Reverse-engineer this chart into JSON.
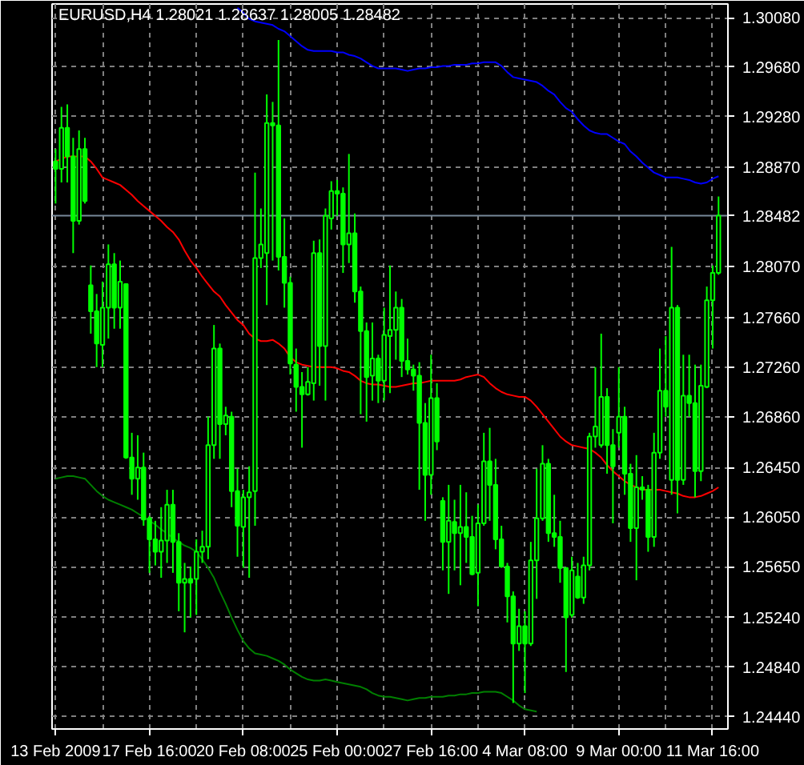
{
  "chart_data": {
    "type": "candlestick",
    "title": "EURUSD,H4  1.28021 1.28637 1.28005 1.28482",
    "color": "#00ff00",
    "grid": true,
    "categories": [
      "13 Feb 2009",
      null,
      null,
      null,
      null,
      null,
      null,
      null,
      null,
      null,
      null,
      null,
      null,
      null,
      null,
      null,
      "17 Feb 16:00",
      null,
      null,
      null,
      null,
      null,
      null,
      null,
      null,
      null,
      null,
      null,
      null,
      null,
      null,
      null,
      "20 Feb 08:00",
      null,
      null,
      null,
      null,
      null,
      null,
      null,
      null,
      null,
      null,
      null,
      null,
      null,
      null,
      null,
      "25 Feb 00:00",
      null,
      null,
      null,
      null,
      null,
      null,
      null,
      null,
      null,
      null,
      null,
      null,
      null,
      null,
      null,
      "27 Feb 16:00",
      null,
      null,
      null,
      null,
      null,
      null,
      null,
      null,
      null,
      null,
      null,
      null,
      null,
      null,
      null,
      "4 Mar 08:00",
      null,
      null,
      null,
      null,
      null,
      null,
      null,
      null,
      null,
      null,
      null,
      null,
      null,
      null,
      null,
      "9 Mar 00:00",
      null,
      null,
      null,
      null,
      null,
      null,
      null,
      null,
      null,
      null,
      null,
      null,
      null,
      null,
      null,
      "11 Mar 16:00",
      null
    ],
    "ohlc": [
      [
        1.2892,
        1.2902,
        1.2858,
        1.2886
      ],
      [
        1.2886,
        1.2936,
        1.2875,
        1.2919
      ],
      [
        1.2919,
        1.2938,
        1.2875,
        1.2896
      ],
      [
        1.2896,
        1.2911,
        1.2818,
        1.2844
      ],
      [
        1.2844,
        1.2917,
        1.2841,
        1.2902
      ],
      [
        1.2902,
        1.2911,
        1.2858,
        1.286
      ],
      [
        1.2792,
        1.2808,
        1.2753,
        1.2771
      ],
      [
        1.2771,
        1.2785,
        1.2726,
        1.2745
      ],
      [
        1.2744,
        1.2795,
        1.2726,
        1.2774
      ],
      [
        1.2774,
        1.2825,
        1.2749,
        1.2809
      ],
      [
        1.2809,
        1.2818,
        1.2757,
        1.2774
      ],
      [
        1.2774,
        1.2812,
        1.2757,
        1.2795
      ],
      [
        1.2793,
        1.2793,
        1.2652,
        1.2653
      ],
      [
        1.2653,
        1.2673,
        1.2623,
        1.2636
      ],
      [
        1.2636,
        1.2671,
        1.2619,
        1.2645
      ],
      [
        1.2645,
        1.2657,
        1.2598,
        1.2603
      ],
      [
        1.2604,
        1.2606,
        1.256,
        1.2587
      ],
      [
        1.2587,
        1.2602,
        1.2566,
        1.2577
      ],
      [
        1.2577,
        1.2613,
        1.2556,
        1.2586
      ],
      [
        1.2586,
        1.2627,
        1.2568,
        1.2615
      ],
      [
        1.2615,
        1.2627,
        1.256,
        1.2585
      ],
      [
        1.2585,
        1.2592,
        1.2529,
        1.2552
      ],
      [
        1.2552,
        1.2568,
        1.2512,
        1.2555
      ],
      [
        1.2555,
        1.2565,
        1.2524,
        1.2552
      ],
      [
        1.2555,
        1.2587,
        1.2526,
        1.2577
      ],
      [
        1.2577,
        1.2594,
        1.2568,
        1.2581
      ],
      [
        1.2581,
        1.2686,
        1.2571,
        1.2663
      ],
      [
        1.2663,
        1.276,
        1.2652,
        1.2741
      ],
      [
        1.2741,
        1.2745,
        1.2652,
        1.268
      ],
      [
        1.268,
        1.2694,
        1.2671,
        1.2687
      ],
      [
        1.2686,
        1.269,
        1.2613,
        1.2626
      ],
      [
        1.2626,
        1.2644,
        1.2573,
        1.2598
      ],
      [
        1.2597,
        1.2627,
        1.2564,
        1.2621
      ],
      [
        1.2621,
        1.2646,
        1.2556,
        1.2625
      ],
      [
        1.2626,
        1.2883,
        1.2598,
        1.2814
      ],
      [
        1.2814,
        1.2854,
        1.2806,
        1.2825
      ],
      [
        1.2818,
        1.2946,
        1.2776,
        1.2923
      ],
      [
        1.2923,
        1.294,
        1.2812,
        1.2921
      ],
      [
        1.2921,
        1.299,
        1.2804,
        1.2815
      ],
      [
        1.2815,
        1.2846,
        1.2774,
        1.2794
      ],
      [
        1.2794,
        1.2799,
        1.272,
        1.2729
      ],
      [
        1.2728,
        1.2741,
        1.269,
        1.271
      ],
      [
        1.271,
        1.2722,
        1.2661,
        1.2704
      ],
      [
        1.2704,
        1.2726,
        1.2703,
        1.2714
      ],
      [
        1.2713,
        1.2828,
        1.2699,
        1.2818
      ],
      [
        1.2818,
        1.2829,
        1.2711,
        1.2743
      ],
      [
        1.2743,
        1.2854,
        1.2699,
        1.2848
      ],
      [
        1.2846,
        1.2876,
        1.2837,
        1.2868
      ],
      [
        1.2868,
        1.2877,
        1.2848,
        1.2866
      ],
      [
        1.2866,
        1.2871,
        1.2802,
        1.2825
      ],
      [
        1.2825,
        1.2898,
        1.281,
        1.2834
      ],
      [
        1.2834,
        1.285,
        1.2778,
        1.2787
      ],
      [
        1.2787,
        1.2791,
        1.2688,
        1.2755
      ],
      [
        1.2755,
        1.2762,
        1.2682,
        1.2718
      ],
      [
        1.2719,
        1.2762,
        1.2699,
        1.2733
      ],
      [
        1.2733,
        1.2736,
        1.2697,
        1.2715
      ],
      [
        1.2715,
        1.2774,
        1.2699,
        1.2752
      ],
      [
        1.2751,
        1.2808,
        1.2705,
        1.2756
      ],
      [
        1.2756,
        1.2787,
        1.2732,
        1.2774
      ],
      [
        1.2774,
        1.2781,
        1.2718,
        1.2731
      ],
      [
        1.2731,
        1.2749,
        1.272,
        1.2724
      ],
      [
        1.2724,
        1.2728,
        1.2707,
        1.2719
      ],
      [
        1.2719,
        1.273,
        1.2627,
        1.2681
      ],
      [
        1.2681,
        1.2697,
        1.2602,
        1.2639
      ],
      [
        1.2639,
        1.2736,
        1.2623,
        1.2701
      ],
      [
        1.2701,
        1.2713,
        1.2659,
        1.2666
      ],
      [
        1.2618,
        1.2621,
        1.2562,
        1.2585
      ],
      [
        1.2585,
        1.2631,
        1.2543,
        1.2602
      ],
      [
        1.2601,
        1.2619,
        1.2562,
        1.2592
      ],
      [
        1.2592,
        1.2631,
        1.255,
        1.2597
      ],
      [
        1.2597,
        1.2625,
        1.2568,
        1.2589
      ],
      [
        1.2589,
        1.2606,
        1.2558,
        1.2559
      ],
      [
        1.256,
        1.2615,
        1.2533,
        1.26
      ],
      [
        1.26,
        1.2673,
        1.2598,
        1.265
      ],
      [
        1.265,
        1.2677,
        1.2602,
        1.2631
      ],
      [
        1.2631,
        1.2652,
        1.2579,
        1.2587
      ],
      [
        1.2587,
        1.2598,
        1.2564,
        1.2565
      ],
      [
        1.2565,
        1.2568,
        1.252,
        1.2541
      ],
      [
        1.2541,
        1.2545,
        1.2455,
        1.2503
      ],
      [
        1.2503,
        1.2531,
        1.2497,
        1.2517
      ],
      [
        1.2517,
        1.2529,
        1.2463,
        1.2503
      ],
      [
        1.2503,
        1.2585,
        1.2501,
        1.257
      ],
      [
        1.257,
        1.2644,
        1.2539,
        1.2604
      ],
      [
        1.2604,
        1.2663,
        1.2602,
        1.2648
      ],
      [
        1.2648,
        1.2652,
        1.2585,
        1.2592
      ],
      [
        1.2592,
        1.2623,
        1.2581,
        1.2589
      ],
      [
        1.2589,
        1.2602,
        1.2552,
        1.2564
      ],
      [
        1.2564,
        1.2564,
        1.248,
        1.2524
      ],
      [
        1.2526,
        1.2573,
        1.2524,
        1.2562
      ],
      [
        1.2557,
        1.2568,
        1.2539,
        1.254
      ],
      [
        1.254,
        1.2573,
        1.2535,
        1.2566
      ],
      [
        1.2566,
        1.2673,
        1.2562,
        1.267
      ],
      [
        1.267,
        1.2726,
        1.2661,
        1.2678
      ],
      [
        1.2663,
        1.2753,
        1.2661,
        1.2702
      ],
      [
        1.2702,
        1.2709,
        1.264,
        1.2663
      ],
      [
        1.2663,
        1.2676,
        1.26,
        1.2646
      ],
      [
        1.2673,
        1.2726,
        1.2661,
        1.2686
      ],
      [
        1.2686,
        1.2694,
        1.2623,
        1.264
      ],
      [
        1.264,
        1.2648,
        1.2585,
        1.2596
      ],
      [
        1.2596,
        1.2655,
        1.2554,
        1.2629
      ],
      [
        1.2629,
        1.2638,
        1.2619,
        1.2627
      ],
      [
        1.2627,
        1.2631,
        1.2577,
        1.2589
      ],
      [
        1.2589,
        1.2673,
        1.2581,
        1.2657
      ],
      [
        1.2657,
        1.2741,
        1.2652,
        1.2707
      ],
      [
        1.2707,
        1.2751,
        1.2686,
        1.2694
      ],
      [
        1.2635,
        1.2823,
        1.2623,
        1.2774
      ],
      [
        1.2774,
        1.2776,
        1.2608,
        1.2635
      ],
      [
        1.2635,
        1.2736,
        1.2631,
        1.2703
      ],
      [
        1.2703,
        1.2736,
        1.2686,
        1.2697
      ],
      [
        1.2697,
        1.2728,
        1.2621,
        1.2642
      ],
      [
        1.2642,
        1.2728,
        1.2634,
        1.2711
      ],
      [
        1.271,
        1.2791,
        1.2709,
        1.278
      ],
      [
        1.278,
        1.2808,
        1.2741,
        1.2802
      ],
      [
        1.28021,
        1.28637,
        1.28005,
        1.28482
      ]
    ],
    "series": [
      {
        "type": "line",
        "color": "#0000ff",
        "values": [
          null,
          null,
          null,
          null,
          null,
          null,
          null,
          null,
          null,
          null,
          null,
          null,
          null,
          null,
          null,
          null,
          null,
          null,
          null,
          null,
          null,
          null,
          null,
          null,
          null,
          null,
          null,
          null,
          null,
          null,
          null,
          1.3016,
          1.3012,
          1.3007,
          1.3005,
          1.3004,
          1.3003,
          1.3002,
          1.2999,
          1.2997,
          1.2993,
          1.2989,
          1.2985,
          1.2982,
          1.2981,
          1.2981,
          1.2981,
          1.2981,
          1.298,
          1.298,
          1.2978,
          1.2977,
          1.2975,
          1.2972,
          1.2969,
          1.2967,
          1.2967,
          1.2967,
          1.2967,
          1.2966,
          1.2965,
          1.2966,
          1.2967,
          1.2967,
          1.2968,
          1.2968,
          1.2969,
          1.2969,
          1.297,
          1.297,
          1.297,
          1.2971,
          1.2971,
          1.2972,
          1.2972,
          1.2972,
          1.2969,
          1.2964,
          1.296,
          1.2959,
          1.2958,
          1.2957,
          1.2956,
          1.2953,
          1.2949,
          1.2946,
          1.294,
          1.2935,
          1.2932,
          1.2926,
          1.2921,
          1.2917,
          1.2915,
          1.2914,
          1.2914,
          1.2911,
          1.2908,
          1.2906,
          1.29,
          1.2896,
          1.2891,
          1.2887,
          1.2883,
          1.2881,
          1.2879,
          1.2879,
          1.2879,
          1.2878,
          1.2877,
          1.2875,
          1.2874,
          1.2875,
          1.2878,
          1.288
        ]
      },
      {
        "type": "line",
        "color": "#ff0000",
        "values": [
          1.2892,
          1.2894,
          1.2896,
          1.2896,
          1.2896,
          1.2896,
          1.2892,
          1.2886,
          1.2879,
          1.2877,
          1.2875,
          1.2873,
          1.2869,
          1.2865,
          1.286,
          1.2856,
          1.2852,
          1.2848,
          1.2844,
          1.2839,
          1.2835,
          1.2829,
          1.282,
          1.2812,
          1.2806,
          1.2799,
          1.2793,
          1.2787,
          1.2783,
          1.2776,
          1.277,
          1.2764,
          1.276,
          1.2753,
          1.2749,
          1.2747,
          1.2747,
          1.2748,
          1.2745,
          1.2741,
          1.2734,
          1.273,
          1.2728,
          1.2727,
          1.2726,
          1.2726,
          1.2726,
          1.2726,
          1.2725,
          1.2723,
          1.2722,
          1.2719,
          1.2715,
          1.2713,
          1.2712,
          1.2712,
          1.2711,
          1.271,
          1.271,
          1.2711,
          1.2712,
          1.2713,
          1.2713,
          1.2714,
          1.2715,
          1.2715,
          1.2715,
          1.2715,
          1.2715,
          1.2716,
          1.2718,
          1.2719,
          1.272,
          1.2718,
          1.2713,
          1.2709,
          1.2706,
          1.2704,
          1.2703,
          1.2702,
          1.2702,
          1.2699,
          1.2694,
          1.2688,
          1.2682,
          1.2676,
          1.267,
          1.2666,
          1.2663,
          1.2662,
          1.2661,
          1.266,
          1.2657,
          1.2653,
          1.2647,
          1.2642,
          1.2638,
          1.2634,
          1.2631,
          1.2629,
          1.2627,
          1.2627,
          1.2627,
          1.2627,
          1.2626,
          1.2625,
          1.2624,
          1.2622,
          1.2621,
          1.2621,
          1.2622,
          1.2624,
          1.2626,
          1.2629
        ]
      },
      {
        "type": "line",
        "color": "#008000",
        "values": [
          1.2636,
          1.2637,
          1.2638,
          1.2638,
          1.2637,
          1.2636,
          1.2631,
          1.2626,
          1.2622,
          1.2619,
          1.2617,
          1.2615,
          1.2613,
          1.2611,
          1.2608,
          1.2605,
          1.2602,
          1.2599,
          1.2595,
          1.2592,
          1.2588,
          1.2585,
          1.2582,
          1.258,
          1.2577,
          1.2571,
          1.2564,
          1.2556,
          1.2545,
          1.2535,
          1.2524,
          1.2514,
          1.2505,
          1.2499,
          1.2495,
          1.2494,
          1.2493,
          1.2491,
          1.2489,
          1.2486,
          1.2482,
          1.2479,
          1.2476,
          1.2474,
          1.2473,
          1.2473,
          1.2474,
          1.2473,
          1.2472,
          1.2471,
          1.247,
          1.2469,
          1.2468,
          1.2466,
          1.2463,
          1.2461,
          1.246,
          1.246,
          1.2459,
          1.2458,
          1.2457,
          1.2458,
          1.2459,
          1.2459,
          1.246,
          1.246,
          1.246,
          1.2461,
          1.2461,
          1.2462,
          1.2462,
          1.2463,
          1.2463,
          1.2464,
          1.2464,
          1.2464,
          1.2463,
          1.246,
          1.2457,
          1.2453,
          1.245,
          1.2449,
          1.2448,
          null,
          null,
          null,
          null,
          null,
          null,
          null,
          null,
          null,
          null,
          null,
          null,
          null,
          null,
          null,
          null,
          null,
          null,
          null,
          null,
          null,
          null,
          null,
          null,
          null,
          null,
          null,
          null,
          null,
          null,
          null
        ]
      }
    ],
    "ylim": [
      1.2434,
      1.3019
    ],
    "yticks": [
      {
        "value": 1.3008,
        "label": "1.30080"
      },
      {
        "value": 1.2968,
        "label": "1.29680"
      },
      {
        "value": 1.2928,
        "label": "1.29280"
      },
      {
        "value": 1.2887,
        "label": "1.28870"
      },
      {
        "value": 1.2807,
        "label": "1.28070"
      },
      {
        "value": 1.2766,
        "label": "1.27660"
      },
      {
        "value": 1.2726,
        "label": "1.27260"
      },
      {
        "value": 1.2686,
        "label": "1.26860"
      },
      {
        "value": 1.2645,
        "label": "1.26450"
      },
      {
        "value": 1.2605,
        "label": "1.26050"
      },
      {
        "value": 1.2565,
        "label": "1.25650"
      },
      {
        "value": 1.2524,
        "label": "1.25240"
      },
      {
        "value": 1.2484,
        "label": "1.24840"
      },
      {
        "value": 1.2444,
        "label": "1.24440"
      }
    ],
    "ref_lines": [
      {
        "axis": "y",
        "value": 1.28482,
        "label": "1.28482",
        "color": "#778899"
      }
    ]
  }
}
